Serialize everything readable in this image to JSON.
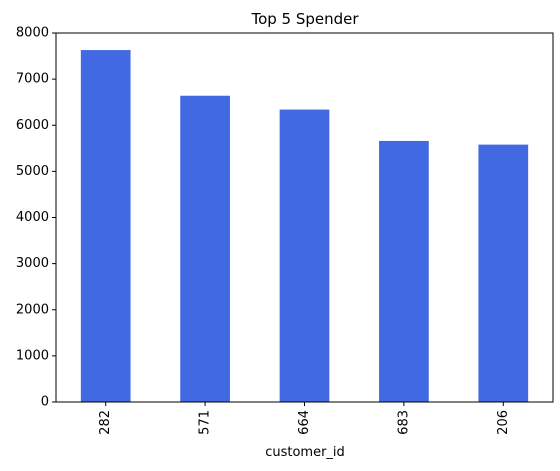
{
  "chart_data": {
    "type": "bar",
    "title": "Top 5 Spender",
    "xlabel": "customer_id",
    "ylabel": "",
    "categories": [
      "282",
      "571",
      "664",
      "683",
      "206"
    ],
    "values": [
      7630,
      6640,
      6340,
      5660,
      5580
    ],
    "ylim": [
      0,
      8000
    ],
    "yticks": [
      0,
      1000,
      2000,
      3000,
      4000,
      5000,
      6000,
      7000,
      8000
    ],
    "grid": false,
    "legend": "none",
    "bar_color": "#4169E1"
  }
}
